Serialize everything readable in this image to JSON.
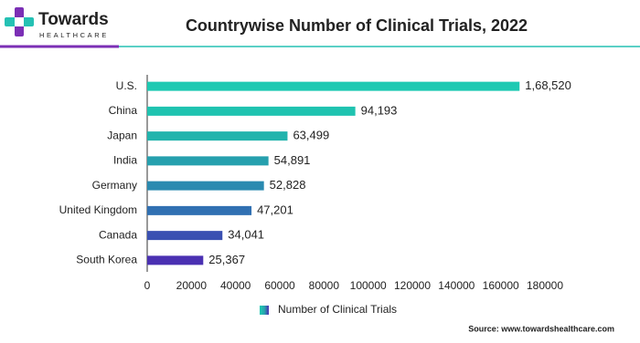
{
  "logo": {
    "name": "Towards",
    "tagline": "HEALTHCARE"
  },
  "chart_data": {
    "type": "bar",
    "orientation": "horizontal",
    "title": "Countrywise Number of Clinical Trials, 2022",
    "categories": [
      "U.S.",
      "China",
      "Japan",
      "India",
      "Germany",
      "United Kingdom",
      "Canada",
      "South Korea"
    ],
    "series": [
      {
        "name": "Number of Clinical Trials",
        "color": "#27a9ae",
        "colors": [
          "#1ec9b2",
          "#1fc3b0",
          "#22b4ad",
          "#26a0ae",
          "#2a8ab0",
          "#3070b2",
          "#3a50b2",
          "#4a30b2"
        ],
        "values": [
          168520,
          94193,
          63499,
          54891,
          52828,
          47201,
          34041,
          25367
        ],
        "value_labels": [
          "1,68,520",
          "94,193",
          "63,499",
          "54,891",
          "52,828",
          "47,201",
          "34,041",
          "25,367"
        ]
      }
    ],
    "xlim": [
      0,
      180000
    ],
    "xticks": [
      0,
      20000,
      40000,
      60000,
      80000,
      100000,
      120000,
      140000,
      160000,
      180000
    ],
    "grid": false,
    "source": "Source: www.towardshealthcare.com"
  }
}
